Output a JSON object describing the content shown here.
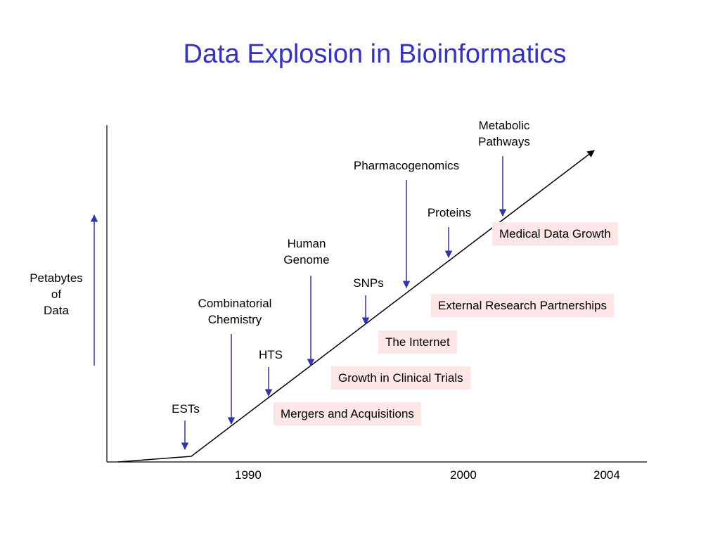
{
  "title": "Data Explosion in Bioinformatics",
  "y_axis_label": [
    "Petabytes",
    "of",
    "Data"
  ],
  "x_ticks": [
    "1990",
    "2000",
    "2004"
  ],
  "events": {
    "ests": "ESTs",
    "combinatorial": [
      "Combinatorial",
      "Chemistry"
    ],
    "hts": "HTS",
    "human_genome": [
      "Human",
      "Genome"
    ],
    "snps": "SNPs",
    "pharmacogenomics": "Pharmacogenomics",
    "proteins": "Proteins",
    "metabolic": [
      "Metabolic",
      "Pathways"
    ]
  },
  "drivers": [
    "Medical Data Growth",
    "External Research Partnerships",
    "The Internet",
    "Growth in Clinical Trials",
    "Mergers and Acquisitions"
  ],
  "colors": {
    "title": "#3333cc",
    "arrow": "#3333aa",
    "box_fill": "#fde6e6"
  }
}
